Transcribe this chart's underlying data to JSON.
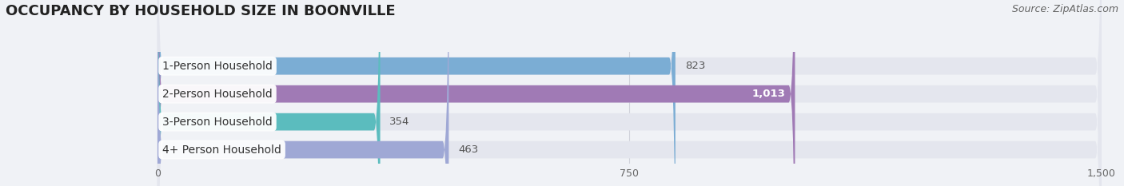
{
  "title": "OCCUPANCY BY HOUSEHOLD SIZE IN BOONVILLE",
  "source": "Source: ZipAtlas.com",
  "categories": [
    "1-Person Household",
    "2-Person Household",
    "3-Person Household",
    "4+ Person Household"
  ],
  "values": [
    823,
    1013,
    354,
    463
  ],
  "bar_colors": [
    "#7badd4",
    "#a07ab5",
    "#5bbcbe",
    "#9fa8d5"
  ],
  "label_values": [
    "823",
    "1,013",
    "354",
    "463"
  ],
  "xlim": [
    0,
    1500
  ],
  "xticks": [
    0,
    750,
    1500
  ],
  "bg_color": "#f0f2f6",
  "bar_bg_color": "#e4e6ee",
  "title_fontsize": 13,
  "source_fontsize": 9,
  "label_fontsize": 9.5,
  "category_fontsize": 10,
  "bar_height": 0.62
}
